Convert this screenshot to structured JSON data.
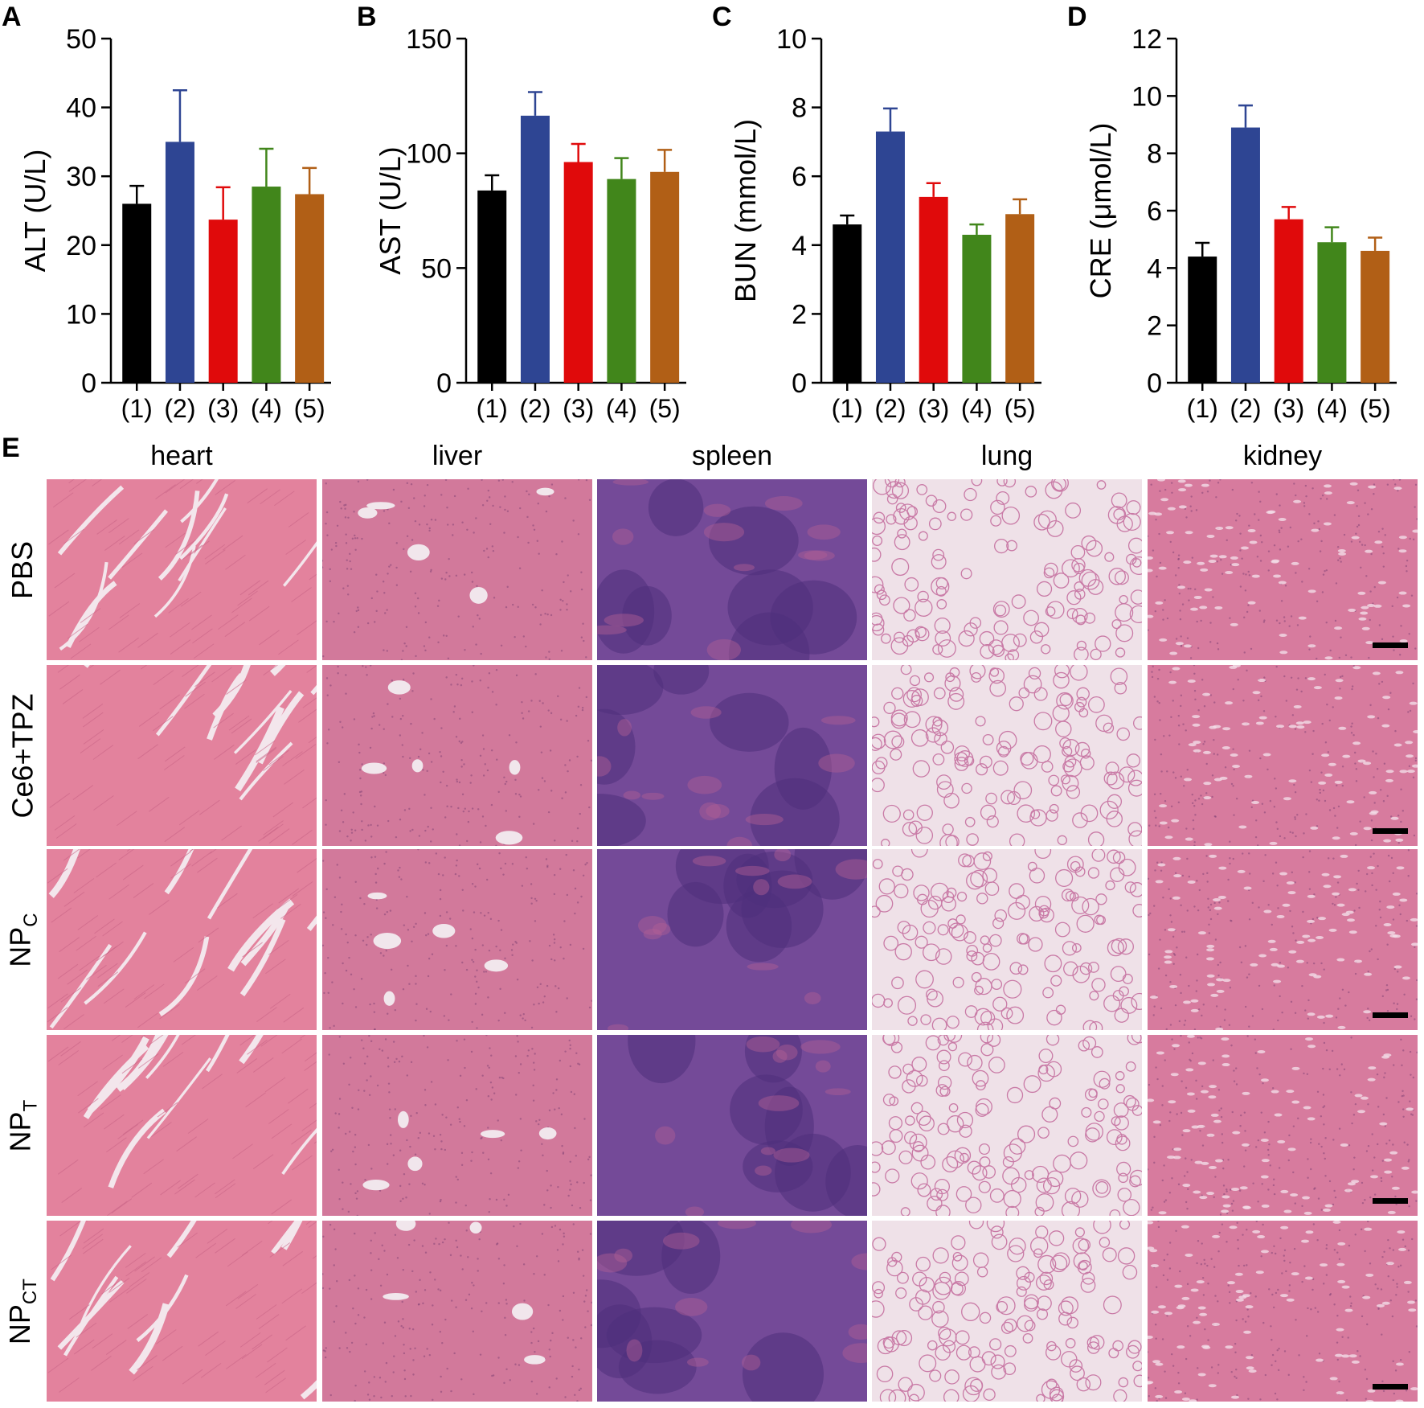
{
  "panel_letters": [
    "A",
    "B",
    "C",
    "D",
    "E"
  ],
  "colors": {
    "group1": "#000000",
    "group2": "#2e4593",
    "group3": "#e00a0b",
    "group4": "#41861b",
    "group5": "#b15f16"
  },
  "chart_data": [
    {
      "type": "bar",
      "ylabel": "ALT (U/L)",
      "categories": [
        "(1)",
        "(2)",
        "(3)",
        "(4)",
        "(5)"
      ],
      "values": [
        26,
        35,
        23.7,
        28.5,
        27.4
      ],
      "errors": [
        2.6,
        7.5,
        4.7,
        5.5,
        3.8
      ],
      "ylim": [
        0,
        50
      ],
      "yticks": [
        0,
        10,
        20,
        30,
        40,
        50
      ],
      "grid": false
    },
    {
      "type": "bar",
      "ylabel": "AST (U/L)",
      "categories": [
        "(1)",
        "(2)",
        "(3)",
        "(4)",
        "(5)"
      ],
      "values": [
        83.8,
        116.4,
        96.2,
        88.8,
        91.9
      ],
      "errors": [
        6.6,
        10.3,
        7.9,
        9.1,
        9.6
      ],
      "ylim": [
        0,
        150
      ],
      "yticks": [
        0,
        50,
        100,
        150
      ],
      "grid": false
    },
    {
      "type": "bar",
      "ylabel": "BUN (mmol/L)",
      "categories": [
        "(1)",
        "(2)",
        "(3)",
        "(4)",
        "(5)"
      ],
      "values": [
        4.6,
        7.3,
        5.4,
        4.3,
        4.9
      ],
      "errors": [
        0.26,
        0.67,
        0.4,
        0.3,
        0.43
      ],
      "ylim": [
        0,
        10
      ],
      "yticks": [
        0,
        2,
        4,
        6,
        8,
        10
      ],
      "grid": false
    },
    {
      "type": "bar",
      "ylabel": "CRE (μmol/L)",
      "categories": [
        "(1)",
        "(2)",
        "(3)",
        "(4)",
        "(5)"
      ],
      "values": [
        4.4,
        8.9,
        5.7,
        4.9,
        4.6
      ],
      "errors": [
        0.48,
        0.77,
        0.43,
        0.52,
        0.46
      ],
      "ylim": [
        0,
        12
      ],
      "yticks": [
        0,
        2,
        4,
        6,
        8,
        10,
        12
      ],
      "grid": false
    }
  ],
  "histology": {
    "columns": [
      "heart",
      "liver",
      "spleen",
      "lung",
      "kidney"
    ],
    "rows": [
      {
        "main": "PBS",
        "sub": ""
      },
      {
        "main": "Ce6+TPZ",
        "sub": ""
      },
      {
        "main": "NP",
        "sub": "C"
      },
      {
        "main": "NP",
        "sub": "T"
      },
      {
        "main": "NP",
        "sub": "CT"
      }
    ],
    "tissue_colors": {
      "heart": "#e3829d",
      "liver": "#d2799b",
      "spleen": "#744a98",
      "lung": "#efe1e8",
      "kidney": "#d77b9e"
    }
  }
}
